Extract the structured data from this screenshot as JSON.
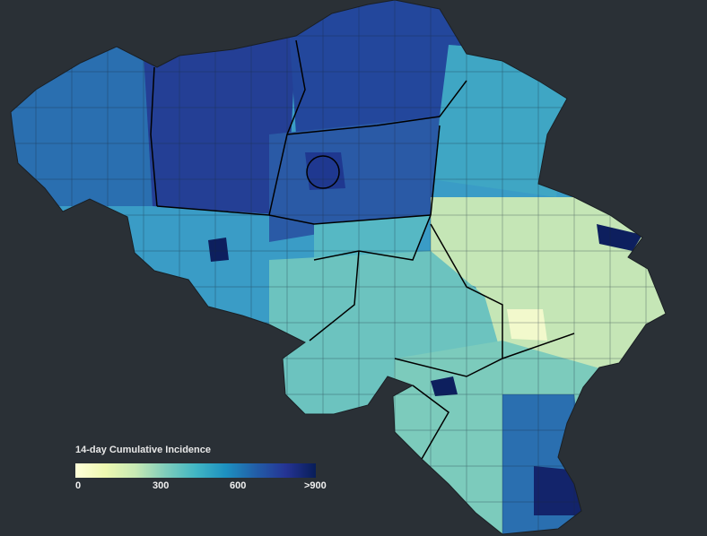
{
  "legend": {
    "title": "14-day Cumulative Incidence",
    "ticks": [
      "0",
      "300",
      "600",
      ">900"
    ],
    "colors": [
      "#ffffd9",
      "#c7e9b4",
      "#41b6c4",
      "#1d91c0",
      "#253494",
      "#081d58"
    ]
  },
  "map": {
    "region_colors": {
      "west_flanders": "#2a6fb0",
      "east_flanders": "#243f95",
      "antwerp": "#23479c",
      "limburg": "#3fa6c4",
      "flemish_brabant": "#2a5aa6",
      "hainaut": "#3a9cc6",
      "walloon_brabant": "#56b8c4",
      "namur": "#6cc3bf",
      "liege": "#c5e6b6",
      "luxembourg": "#7ccbbc",
      "outline": "#1a1f24"
    }
  }
}
